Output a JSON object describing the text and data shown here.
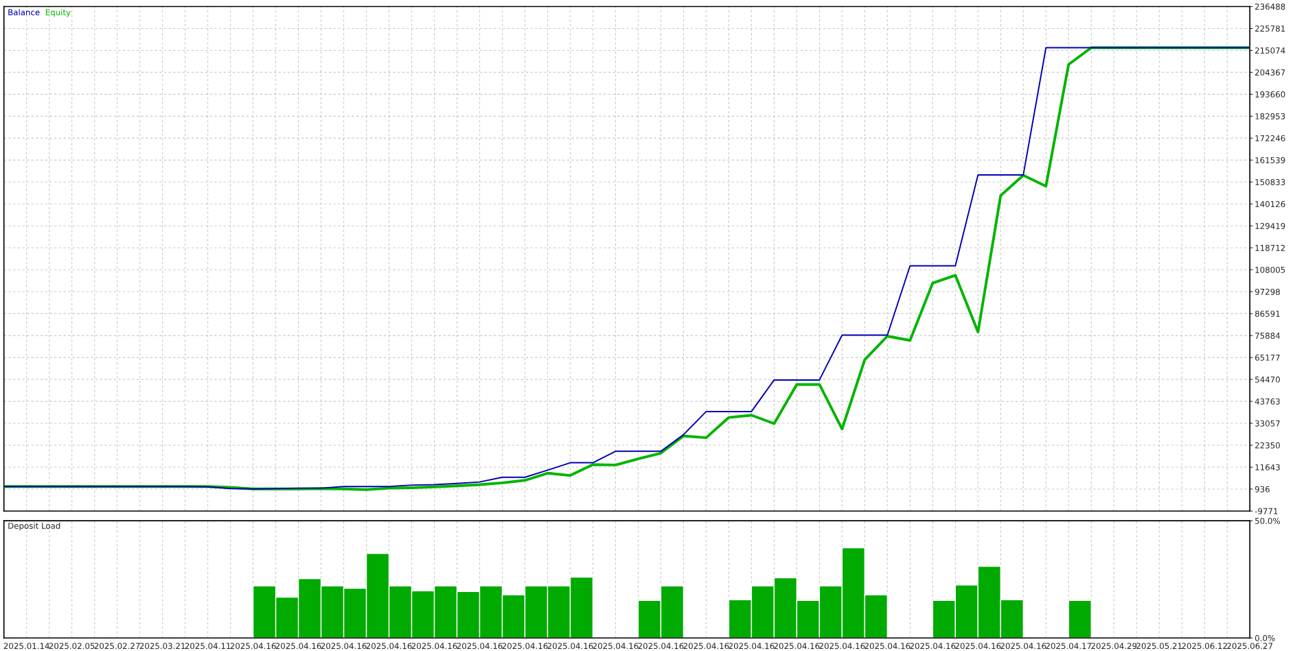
{
  "chart_data": [
    {
      "type": "line",
      "legend": "top left",
      "grid": true,
      "tick_labels": "y",
      "categories": [
        null,
        "2025.01.14",
        null,
        "2025.02.05",
        null,
        "2025.02.27",
        null,
        "2025.03.21",
        null,
        "2025.04.11",
        null,
        "2025.04.16",
        null,
        "2025.04.16",
        null,
        "2025.04.16",
        null,
        "2025.04.16",
        null,
        "2025.04.16",
        null,
        "2025.04.16",
        null,
        "2025.04.16",
        null,
        "2025.04.16",
        null,
        "2025.04.16",
        null,
        "2025.04.16",
        null,
        "2025.04.16",
        null,
        "2025.04.16",
        null,
        "2025.04.16",
        null,
        "2025.04.16",
        null,
        "2025.04.16",
        null,
        "2025.04.16",
        null,
        "2025.04.16",
        null,
        "2025.04.16",
        null,
        "2025.04.17",
        null,
        "2025.04.29",
        null,
        "2025.05.21",
        null,
        "2025.06.12",
        null,
        "2025.06.27"
      ],
      "ylim": [
        -9771,
        236488
      ],
      "yticks": [
        -9771,
        936,
        11643,
        22350,
        33057,
        43763,
        54470,
        65177,
        75884,
        86591,
        97298,
        108005,
        118712,
        129419,
        140126,
        150833,
        161539,
        172246,
        182953,
        193660,
        204367,
        215074,
        225781,
        236488
      ],
      "series": [
        {
          "name": "Balance",
          "color": "#0000b4",
          "values": [
            2200,
            2200,
            2200,
            2200,
            2200,
            2200,
            2200,
            2200,
            2200,
            2000,
            1200,
            1000,
            1200,
            1400,
            1400,
            2200,
            2200,
            2200,
            2900,
            3100,
            3700,
            4400,
            6700,
            6700,
            10200,
            13800,
            13800,
            19400,
            19400,
            19400,
            27500,
            38800,
            38800,
            38800,
            54200,
            54200,
            54200,
            76100,
            76100,
            76100,
            109900,
            109900,
            109900,
            154300,
            154300,
            154300,
            216400,
            216400,
            216400,
            216400,
            216400,
            216400,
            216400,
            216400,
            216400,
            216400
          ]
        },
        {
          "name": "Equity",
          "color": "#00b400",
          "values": [
            2200,
            2200,
            2200,
            2200,
            2200,
            2200,
            2200,
            2200,
            2200,
            2200,
            1800,
            1000,
            1000,
            1000,
            1200,
            1000,
            700,
            1400,
            1600,
            2000,
            2500,
            3100,
            4000,
            5200,
            8700,
            7600,
            12900,
            12700,
            15700,
            18500,
            26900,
            26000,
            35900,
            37000,
            32900,
            52000,
            52000,
            30300,
            64100,
            75600,
            73500,
            101500,
            105300,
            77600,
            144200,
            154100,
            148800,
            208200,
            216400,
            216400,
            216400,
            216400,
            216400,
            216400,
            216400,
            216400
          ]
        }
      ]
    },
    {
      "type": "bar",
      "title": "Deposit Load",
      "color": "#00aa00",
      "grid": true,
      "categories": [
        null,
        "2025.01.14",
        null,
        "2025.02.05",
        null,
        "2025.02.27",
        null,
        "2025.03.21",
        null,
        "2025.04.11",
        null,
        "2025.04.16",
        null,
        "2025.04.16",
        null,
        "2025.04.16",
        null,
        "2025.04.16",
        null,
        "2025.04.16",
        null,
        "2025.04.16",
        null,
        "2025.04.16",
        null,
        "2025.04.16",
        null,
        "2025.04.16",
        null,
        "2025.04.16",
        null,
        "2025.04.16",
        null,
        "2025.04.16",
        null,
        "2025.04.16",
        null,
        "2025.04.16",
        null,
        "2025.04.16",
        null,
        "2025.04.16",
        null,
        "2025.04.16",
        null,
        "2025.04.16",
        null,
        "2025.04.17",
        null,
        "2025.04.29",
        null,
        "2025.05.21",
        null,
        "2025.06.12",
        null,
        "2025.06.27"
      ],
      "ylim": [
        0,
        50
      ],
      "yticks": [
        {
          "value": 0,
          "label": "0.0%"
        },
        {
          "value": 50,
          "label": "50.0%"
        }
      ],
      "values": [
        null,
        null,
        null,
        null,
        null,
        null,
        null,
        null,
        null,
        null,
        null,
        22.2,
        17.4,
        25.3,
        22.2,
        21.2,
        36.1,
        22.2,
        20.1,
        22.2,
        19.8,
        22.2,
        18.4,
        22.2,
        22.2,
        26.0,
        null,
        null,
        16.0,
        22.2,
        null,
        null,
        16.3,
        22.2,
        25.7,
        16.0,
        22.2,
        38.5,
        18.4,
        null,
        null,
        16.0,
        22.6,
        30.6,
        16.3,
        null,
        null,
        16.0,
        null,
        null,
        null,
        null,
        null,
        null,
        null,
        null
      ]
    }
  ]
}
